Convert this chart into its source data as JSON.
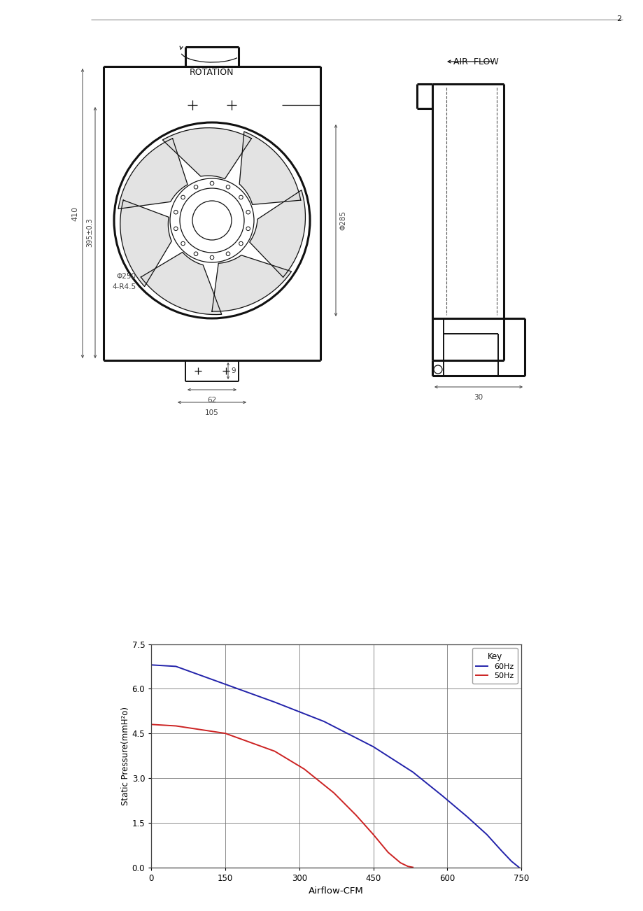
{
  "background_color": "#ffffff",
  "page_num": "2",
  "chart": {
    "xlabel": "Airflow-CFM",
    "ylabel": "Static Pressure(mmH²o)",
    "xlim": [
      0,
      750
    ],
    "ylim": [
      0,
      7.5
    ],
    "xticks": [
      0,
      150,
      300,
      450,
      600,
      750
    ],
    "yticks": [
      0,
      1.5,
      3,
      4.5,
      6,
      7.5
    ],
    "legend_title": "Key",
    "series": [
      {
        "label": "60Hz",
        "color": "#2222aa",
        "x": [
          0,
          50,
          150,
          250,
          350,
          450,
          530,
          590,
          640,
          680,
          710,
          730,
          745
        ],
        "y": [
          6.8,
          6.75,
          6.15,
          5.55,
          4.9,
          4.05,
          3.2,
          2.4,
          1.7,
          1.1,
          0.55,
          0.2,
          0.0
        ]
      },
      {
        "label": "50Hz",
        "color": "#cc2222",
        "x": [
          0,
          50,
          150,
          250,
          310,
          370,
          415,
          450,
          480,
          505,
          520,
          530
        ],
        "y": [
          4.8,
          4.75,
          4.5,
          3.9,
          3.3,
          2.5,
          1.75,
          1.1,
          0.5,
          0.15,
          0.03,
          0.0
        ]
      }
    ]
  }
}
